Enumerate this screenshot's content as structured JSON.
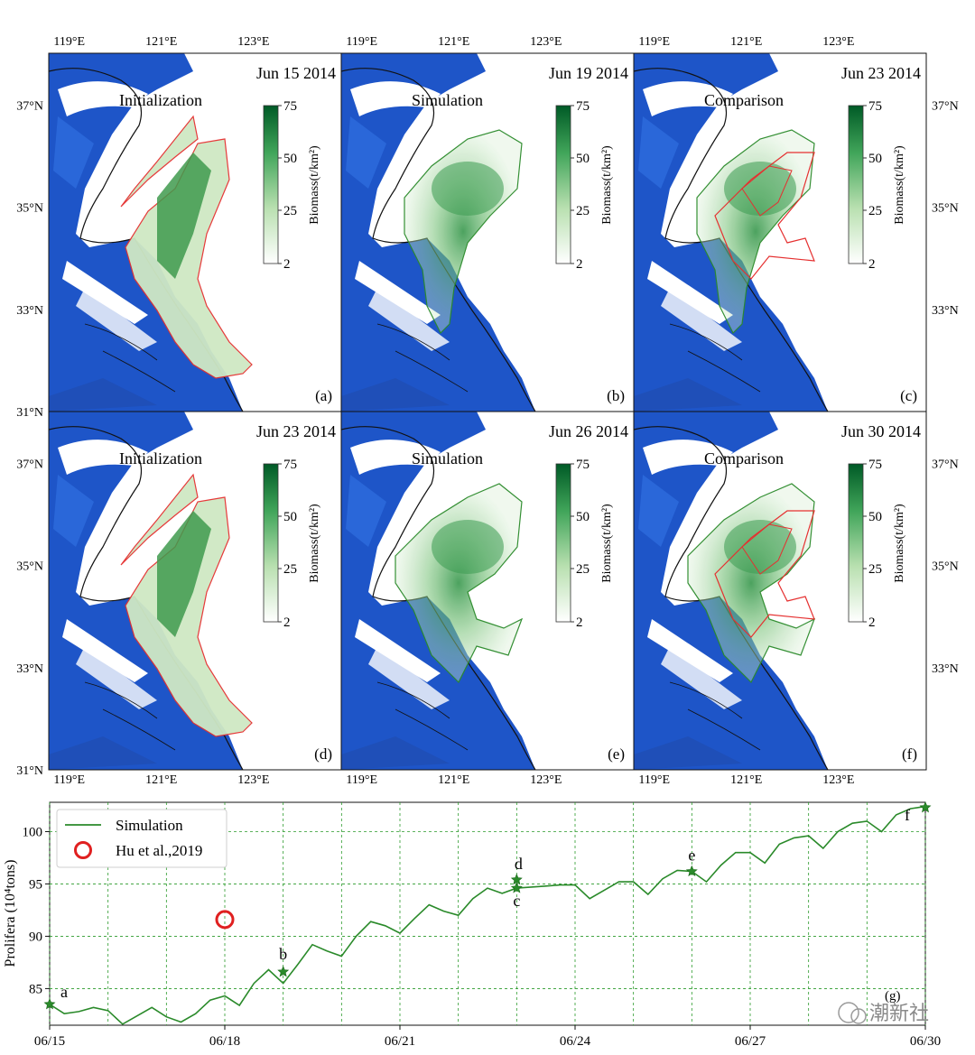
{
  "colors": {
    "sea": "#1e55c8",
    "land": "#ffffff",
    "sim_line": "#2a8a2a",
    "obs_outline": "#e53030",
    "grid": "#2a9a2a",
    "obs_marker": "#e02020"
  },
  "maps": {
    "lon_ticks": [
      "119°E",
      "121°E",
      "123°E"
    ],
    "lat_ticks": [
      "37°N",
      "35°N",
      "33°N",
      "31°N"
    ],
    "colorbar": {
      "label": "Biomass(t/km²)",
      "ticks": [
        "75",
        "50",
        "25",
        "2"
      ]
    },
    "panels": [
      {
        "letter": "(a)",
        "title": "Initialization",
        "date": "Jun 15 2014"
      },
      {
        "letter": "(b)",
        "title": "Simulation",
        "date": "Jun 19 2014"
      },
      {
        "letter": "(c)",
        "title": "Comparison",
        "date": "Jun 23 2014"
      },
      {
        "letter": "(d)",
        "title": "Initialization",
        "date": "Jun 23 2014"
      },
      {
        "letter": "(e)",
        "title": "Simulation",
        "date": "Jun 26 2014"
      },
      {
        "letter": "(f)",
        "title": "Comparison",
        "date": "Jun 30 2014"
      }
    ]
  },
  "chart_data": {
    "type": "line",
    "panel_letter": "(g)",
    "ylabel": "Prolifera (10⁴tons)",
    "xlabel": "",
    "xlim": [
      0,
      15
    ],
    "ylim": [
      81.5,
      102.8
    ],
    "x_tick_labels": [
      "06/15",
      "06/18",
      "06/21",
      "06/24",
      "06/27",
      "06/30"
    ],
    "x_tick_positions": [
      0,
      3,
      6,
      9,
      12,
      15
    ],
    "y_tick_values": [
      85,
      90,
      95,
      100
    ],
    "y_tick_labels": [
      "85",
      "90",
      "95",
      "100"
    ],
    "legend": {
      "position": "top-left",
      "entries": [
        "Simulation",
        "Hu et al.,2019"
      ]
    },
    "series": [
      {
        "name": "Simulation",
        "x": [
          0,
          0.25,
          0.5,
          0.75,
          1,
          1.25,
          1.5,
          1.75,
          2,
          2.25,
          2.5,
          2.75,
          3,
          3.25,
          3.5,
          3.75,
          4,
          4.25,
          4.5,
          4.75,
          5,
          5.25,
          5.5,
          5.75,
          6,
          6.25,
          6.5,
          6.75,
          7,
          7.25,
          7.5,
          7.75,
          8,
          8.25,
          8.5,
          8.75,
          9,
          9.25,
          9.5,
          9.75,
          10,
          10.25,
          10.5,
          10.75,
          11,
          11.25,
          11.5,
          11.75,
          12,
          12.25,
          12.5,
          12.75,
          13,
          13.25,
          13.5,
          13.75,
          14,
          14.25,
          14.5,
          14.75,
          15
        ],
        "y": [
          83.5,
          82.6,
          82.8,
          83.2,
          82.9,
          81.6,
          82.4,
          83.2,
          82.3,
          81.8,
          82.6,
          83.9,
          84.3,
          83.4,
          85.5,
          86.8,
          85.5,
          87.3,
          89.2,
          88.6,
          88.1,
          90.0,
          91.4,
          91.0,
          90.3,
          91.7,
          93.0,
          92.4,
          92.0,
          93.6,
          94.6,
          94.1,
          94.6,
          94.7,
          94.8,
          94.9,
          94.9,
          93.6,
          94.4,
          95.2,
          95.2,
          94.0,
          95.5,
          96.3,
          96.2,
          95.2,
          96.8,
          98.0,
          98.0,
          97.0,
          98.8,
          99.4,
          99.6,
          98.4,
          100.0,
          100.8,
          101.0,
          100.0,
          101.6,
          102.2,
          102.4
        ]
      }
    ],
    "observations": [
      {
        "name": "Hu et al.,2019",
        "x": 3.0,
        "y": 91.6
      }
    ],
    "markers": [
      {
        "label": "a",
        "x": 0.0,
        "y": 83.5
      },
      {
        "label": "b",
        "x": 4.0,
        "y": 86.6
      },
      {
        "label": "c",
        "x": 8.0,
        "y": 94.6
      },
      {
        "label": "d",
        "x": 8.0,
        "y": 95.4
      },
      {
        "label": "e",
        "x": 11.0,
        "y": 96.2
      },
      {
        "label": "f",
        "x": 15.0,
        "y": 102.3
      }
    ]
  },
  "watermark": {
    "text": "潮新社"
  }
}
